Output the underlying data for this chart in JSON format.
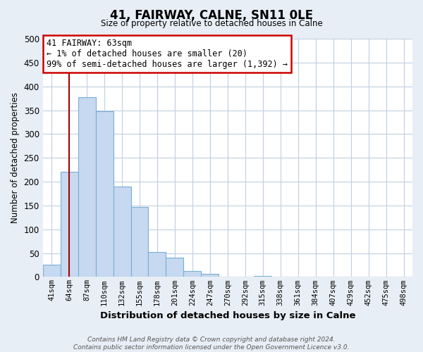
{
  "title": "41, FAIRWAY, CALNE, SN11 0LE",
  "subtitle": "Size of property relative to detached houses in Calne",
  "xlabel": "Distribution of detached houses by size in Calne",
  "ylabel": "Number of detached properties",
  "bin_labels": [
    "41sqm",
    "64sqm",
    "87sqm",
    "110sqm",
    "132sqm",
    "155sqm",
    "178sqm",
    "201sqm",
    "224sqm",
    "247sqm",
    "270sqm",
    "292sqm",
    "315sqm",
    "338sqm",
    "361sqm",
    "384sqm",
    "407sqm",
    "429sqm",
    "452sqm",
    "475sqm",
    "498sqm"
  ],
  "bar_heights": [
    25,
    220,
    378,
    348,
    190,
    147,
    53,
    40,
    13,
    7,
    0,
    0,
    2,
    0,
    0,
    0,
    0,
    0,
    0,
    0,
    0
  ],
  "bar_color": "#c6d9f0",
  "bar_edge_color": "#7aadd4",
  "ylim": [
    0,
    500
  ],
  "yticks": [
    0,
    50,
    100,
    150,
    200,
    250,
    300,
    350,
    400,
    450,
    500
  ],
  "property_line_color": "#aa0000",
  "annotation_title": "41 FAIRWAY: 63sqm",
  "annotation_line1": "← 1% of detached houses are smaller (20)",
  "annotation_line2": "99% of semi-detached houses are larger (1,392) →",
  "annotation_box_color": "#ffffff",
  "annotation_border_color": "#cc0000",
  "footer_line1": "Contains HM Land Registry data © Crown copyright and database right 2024.",
  "footer_line2": "Contains public sector information licensed under the Open Government Licence v3.0.",
  "bg_color": "#e8eef5",
  "plot_bg_color": "#ffffff",
  "grid_color": "#c0cfe0"
}
